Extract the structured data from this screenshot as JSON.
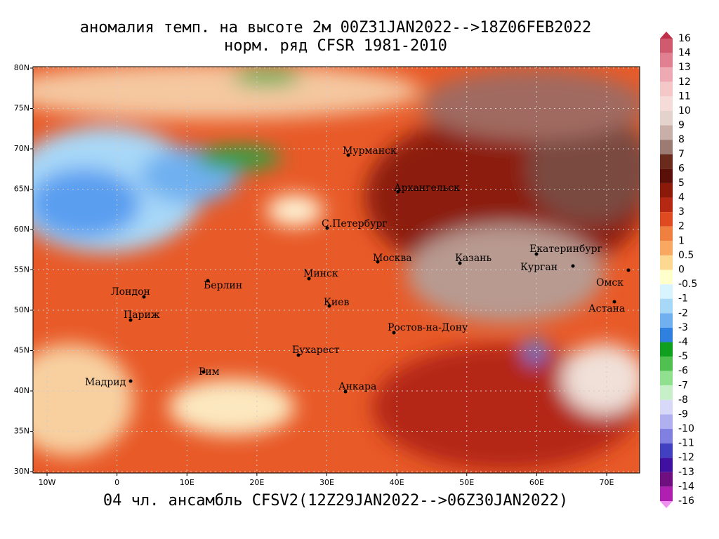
{
  "title": [
    "аномалия темп. на высоте 2м 00Z31JAN2022-->18Z06FEB2022",
    "норм. ряд CFSR 1981-2010"
  ],
  "footer": "04 чл. ансамбль CFSV2(12Z29JAN2022-->06Z30JAN2022)",
  "lat_ticks": [
    {
      "value": 80,
      "label": "80N"
    },
    {
      "value": 75,
      "label": "75N"
    },
    {
      "value": 70,
      "label": "70N"
    },
    {
      "value": 65,
      "label": "65N"
    },
    {
      "value": 60,
      "label": "60N"
    },
    {
      "value": 55,
      "label": "55N"
    },
    {
      "value": 50,
      "label": "50N"
    },
    {
      "value": 45,
      "label": "45N"
    },
    {
      "value": 40,
      "label": "40N"
    },
    {
      "value": 35,
      "label": "35N"
    },
    {
      "value": 30,
      "label": "30N"
    }
  ],
  "lon_ticks": [
    {
      "value": -10,
      "label": "10W"
    },
    0,
    {
      "value": 10,
      "label": "10E"
    },
    {
      "value": 20,
      "label": "20E"
    },
    {
      "value": 30,
      "label": "30E"
    },
    {
      "value": 40,
      "label": "40E"
    },
    {
      "value": 50,
      "label": "50E"
    },
    {
      "value": 60,
      "label": "60E"
    },
    {
      "value": 70,
      "label": "70E"
    }
  ],
  "cities": [
    "Мурманск",
    "Архангельск",
    "С.Петербург",
    "Москва",
    "Казань",
    "Екатеринбург",
    "Курган",
    "Омск",
    "Астана",
    "Минск",
    "Лондон",
    "Берлин",
    "Париж",
    "Киев",
    "Ростов-на-Дону",
    "Бухарест",
    "Рим",
    "Мадрид",
    "Анкара"
  ],
  "colorbar": {
    "levels": [
      16,
      14,
      13,
      12,
      11,
      10,
      9,
      8,
      7,
      6,
      5,
      4,
      3,
      2,
      1,
      0.5,
      0,
      -0.5,
      -1,
      -2,
      -3,
      -4,
      -5,
      -6,
      -7,
      -8,
      -9,
      -10,
      -11,
      -12,
      -13,
      -14,
      -16
    ],
    "colors": [
      "#c0304a",
      "#d05a6e",
      "#e08090",
      "#eeaab3",
      "#f5c8c8",
      "#f5dcd8",
      "#e4d2cc",
      "#c8b0a8",
      "#9c7c72",
      "#6a2a1c",
      "#5a1008",
      "#8c1a0a",
      "#b42814",
      "#e04a20",
      "#f08040",
      "#f8a860",
      "#fcd890",
      "#ffffcc",
      "#d8f4ff",
      "#a8d8f8",
      "#70b0f0",
      "#3080e0",
      "#10a020",
      "#50c050",
      "#90e090",
      "#c8f0c8",
      "#d8d8f8",
      "#b0b0f0",
      "#8080e0",
      "#4040c0",
      "#4010a0",
      "#701080",
      "#b020b0",
      "#f090f0"
    ]
  }
}
